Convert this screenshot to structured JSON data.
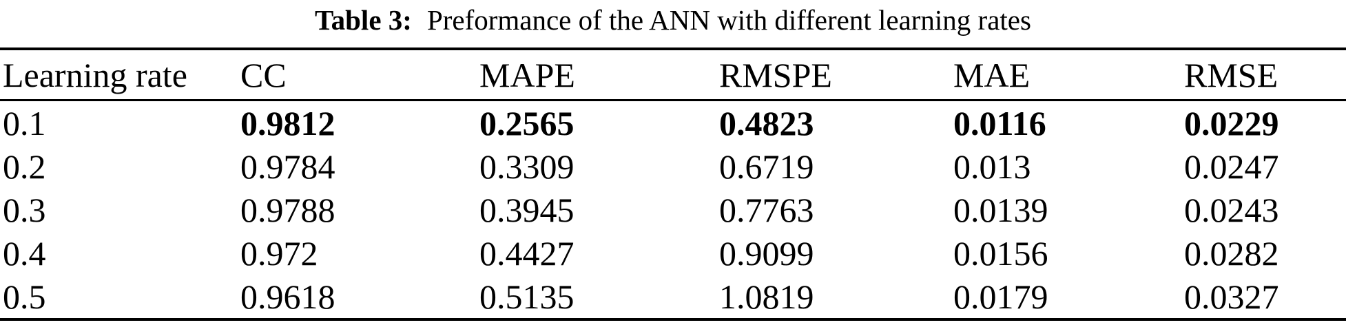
{
  "caption": {
    "label": "Table 3:",
    "text": "Preformance of the ANN with different learning rates"
  },
  "table": {
    "columns": [
      "Learning rate",
      "CC",
      "MAPE",
      "RMSPE",
      "MAE",
      "RMSE"
    ],
    "rows": [
      {
        "values": [
          "0.1",
          "0.9812",
          "0.2565",
          "0.4823",
          "0.0116",
          "0.0229"
        ],
        "bold": true
      },
      {
        "values": [
          "0.2",
          "0.9784",
          "0.3309",
          "0.6719",
          "0.013",
          "0.0247"
        ],
        "bold": false
      },
      {
        "values": [
          "0.3",
          "0.9788",
          "0.3945",
          "0.7763",
          "0.0139",
          "0.0243"
        ],
        "bold": false
      },
      {
        "values": [
          "0.4",
          "0.972",
          "0.4427",
          "0.9099",
          "0.0156",
          "0.0282"
        ],
        "bold": false
      },
      {
        "values": [
          "0.5",
          "0.9618",
          "0.5135",
          "1.0819",
          "0.0179",
          "0.0327"
        ],
        "bold": false
      }
    ]
  },
  "chart_data": {
    "type": "table",
    "title": "Table 3: Preformance of the ANN with different learning rates",
    "columns": [
      "Learning rate",
      "CC",
      "MAPE",
      "RMSPE",
      "MAE",
      "RMSE"
    ],
    "rows": [
      [
        0.1,
        0.9812,
        0.2565,
        0.4823,
        0.0116,
        0.0229
      ],
      [
        0.2,
        0.9784,
        0.3309,
        0.6719,
        0.013,
        0.0247
      ],
      [
        0.3,
        0.9788,
        0.3945,
        0.7763,
        0.0139,
        0.0243
      ],
      [
        0.4,
        0.972,
        0.4427,
        0.9099,
        0.0156,
        0.0282
      ],
      [
        0.5,
        0.9618,
        0.5135,
        1.0819,
        0.0179,
        0.0327
      ]
    ],
    "emphasis": "Metric values in the learning-rate 0.1 row are rendered bold"
  }
}
